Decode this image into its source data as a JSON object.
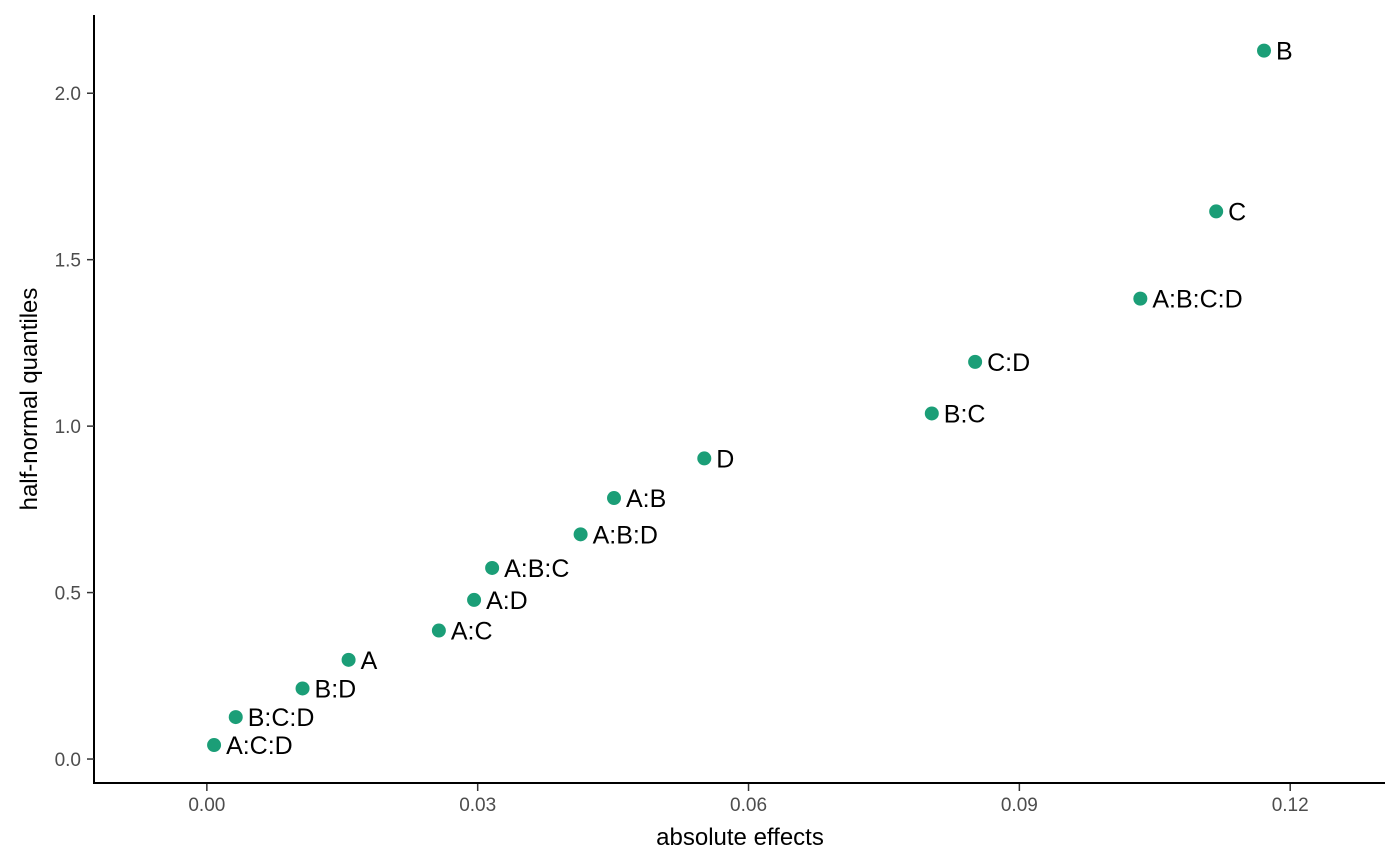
{
  "chart_data": {
    "type": "scatter",
    "title": "",
    "xlabel": "absolute effects",
    "ylabel": "half-normal quantiles",
    "xlim": [
      -0.0125,
      0.1305
    ],
    "ylim": [
      -0.072,
      2.235
    ],
    "xticks": [
      0.0,
      0.03,
      0.06,
      0.09,
      0.12
    ],
    "xtick_labels": [
      "0.00",
      "0.03",
      "0.06",
      "0.09",
      "0.12"
    ],
    "yticks": [
      0.0,
      0.5,
      1.0,
      1.5,
      2.0
    ],
    "ytick_labels": [
      "0.0",
      "0.5",
      "1.0",
      "1.5",
      "2.0"
    ],
    "grid": false,
    "point_color": "#1b9e77",
    "points": [
      {
        "label": "A:C:D",
        "x": 0.0008,
        "y": 0.042
      },
      {
        "label": "B:C:D",
        "x": 0.0032,
        "y": 0.126
      },
      {
        "label": "B:D",
        "x": 0.0106,
        "y": 0.212
      },
      {
        "label": "A",
        "x": 0.0157,
        "y": 0.298
      },
      {
        "label": "A:C",
        "x": 0.0257,
        "y": 0.386
      },
      {
        "label": "A:D",
        "x": 0.0296,
        "y": 0.478
      },
      {
        "label": "A:B:C",
        "x": 0.0316,
        "y": 0.574
      },
      {
        "label": "A:B:D",
        "x": 0.0414,
        "y": 0.675
      },
      {
        "label": "A:B",
        "x": 0.0451,
        "y": 0.784
      },
      {
        "label": "D",
        "x": 0.0551,
        "y": 0.903
      },
      {
        "label": "B:C",
        "x": 0.0803,
        "y": 1.038
      },
      {
        "label": "C:D",
        "x": 0.0851,
        "y": 1.193
      },
      {
        "label": "A:B:C:D",
        "x": 0.1034,
        "y": 1.383
      },
      {
        "label": "C",
        "x": 0.1118,
        "y": 1.645
      },
      {
        "label": "B",
        "x": 0.1171,
        "y": 2.128
      }
    ]
  }
}
